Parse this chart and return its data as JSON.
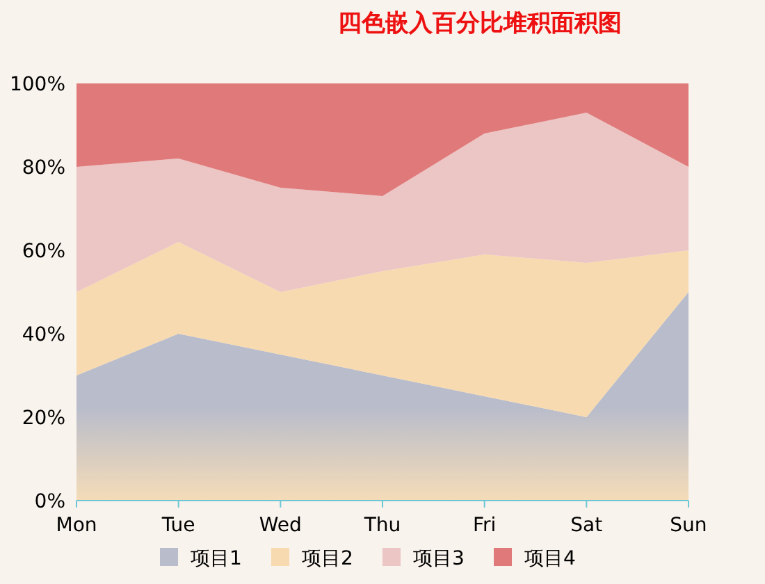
{
  "chart_data": {
    "type": "area",
    "title": "四色嵌入百分比堆积面积图",
    "categories": [
      "Mon",
      "Tue",
      "Wed",
      "Thu",
      "Fri",
      "Sat",
      "Sun"
    ],
    "stacked": true,
    "series": [
      {
        "name": "项目1",
        "color": "#b8bccb",
        "values": [
          30,
          40,
          35,
          30,
          25,
          20,
          50
        ]
      },
      {
        "name": "项目2",
        "color": "#f7dab0",
        "values": [
          20,
          22,
          15,
          25,
          34,
          37,
          10
        ]
      },
      {
        "name": "项目3",
        "color": "#ecc5c5",
        "values": [
          30,
          20,
          25,
          18,
          29,
          36,
          20
        ]
      },
      {
        "name": "项目4",
        "color": "#e07a7a",
        "values": [
          20,
          18,
          25,
          27,
          12,
          7,
          20
        ]
      }
    ],
    "ylim": [
      0,
      100
    ],
    "yticks": [
      {
        "value": 0,
        "label": "0%"
      },
      {
        "value": 20,
        "label": "20%"
      },
      {
        "value": 40,
        "label": "40%"
      },
      {
        "value": 60,
        "label": "60%"
      },
      {
        "value": 80,
        "label": "80%"
      },
      {
        "value": 100,
        "label": "100%"
      }
    ],
    "legend": "bottom"
  }
}
